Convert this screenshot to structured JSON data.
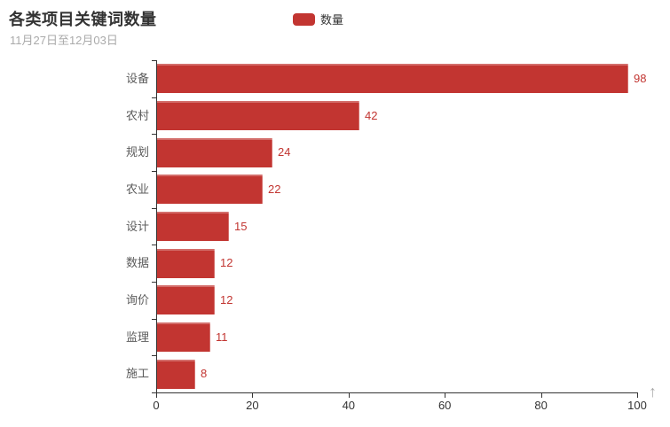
{
  "header": {
    "title": "各类项目关键词数量",
    "subtitle": "11月27日至12月03日"
  },
  "legend": {
    "items": [
      {
        "label": "数量",
        "color": "#c23531"
      }
    ]
  },
  "colors": {
    "bar": "#c23531",
    "value_label": "#c23531",
    "axis_line": "#333333",
    "category_label": "#5c5c5c",
    "x_tick_label": "#333333",
    "title": "#333333",
    "subtitle": "#aaaaaa",
    "scroll_arrow": "#aaaaaa",
    "background": "#ffffff"
  },
  "chart_data": {
    "type": "bar",
    "orientation": "horizontal",
    "title": "各类项目关键词数量",
    "subtitle": "11月27日至12月03日",
    "legend_entries": [
      "数量"
    ],
    "legend_position": "top-center",
    "categories": [
      "设备",
      "农村",
      "规划",
      "农业",
      "设计",
      "数据",
      "询价",
      "监理",
      "施工"
    ],
    "series": [
      {
        "name": "数量",
        "color": "#c23531",
        "values": [
          98,
          42,
          24,
          22,
          15,
          12,
          12,
          11,
          8
        ]
      }
    ],
    "xlabel": "",
    "ylabel": "",
    "xlim": [
      0,
      100
    ],
    "xticks": [
      0,
      20,
      40,
      60,
      80,
      100
    ],
    "grid": false,
    "value_labels_position": "right-of-bar"
  },
  "misc": {
    "scroll_top_arrow": "↑"
  }
}
